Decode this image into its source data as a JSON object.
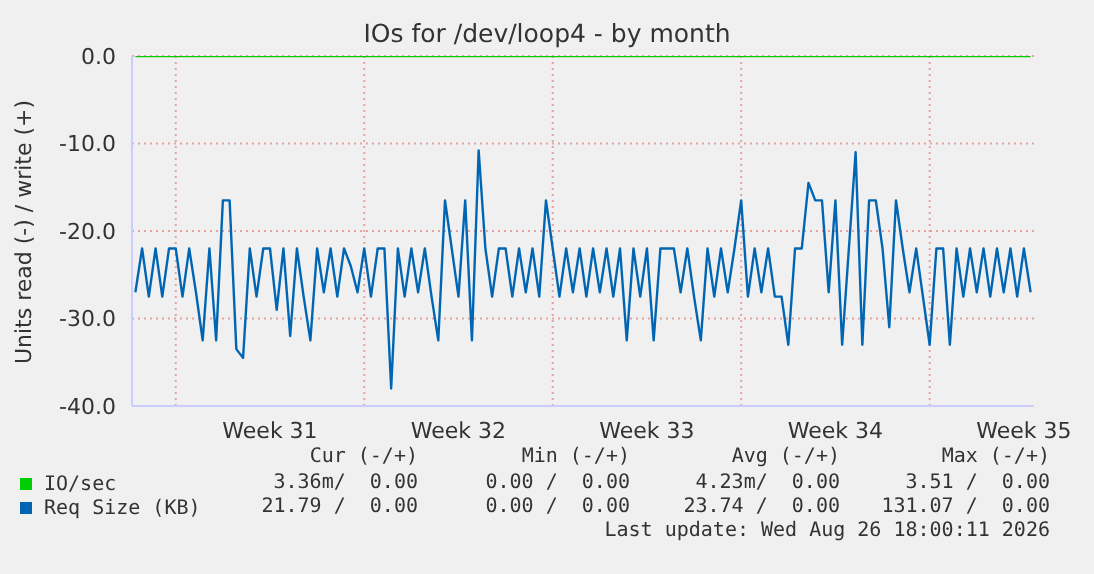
{
  "chart_data": {
    "type": "line",
    "title": "IOs for /dev/loop4 - by month",
    "ylabel": "Units read (-) / write (+)",
    "categories": [
      null,
      null,
      null,
      null,
      null,
      null,
      null,
      null,
      null,
      null,
      null,
      null,
      null,
      null,
      null,
      null,
      null,
      null,
      null,
      null,
      "Week 31",
      null,
      null,
      null,
      null,
      null,
      null,
      null,
      null,
      null,
      null,
      null,
      null,
      null,
      null,
      null,
      null,
      null,
      null,
      null,
      null,
      null,
      null,
      null,
      null,
      null,
      null,
      null,
      "Week 32",
      null,
      null,
      null,
      null,
      null,
      null,
      null,
      null,
      null,
      null,
      null,
      null,
      null,
      null,
      null,
      null,
      null,
      null,
      null,
      null,
      null,
      null,
      null,
      null,
      null,
      null,
      null,
      "Week 33",
      null,
      null,
      null,
      null,
      null,
      null,
      null,
      null,
      null,
      null,
      null,
      null,
      null,
      null,
      null,
      null,
      null,
      null,
      null,
      null,
      null,
      null,
      null,
      null,
      null,
      null,
      null,
      "Week 34",
      null,
      null,
      null,
      null,
      null,
      null,
      null,
      null,
      null,
      null,
      null,
      null,
      null,
      null,
      null,
      null,
      null,
      null,
      null,
      null,
      null,
      null,
      null,
      null,
      null,
      null,
      null,
      "Week 35",
      null
    ],
    "ylim": [
      -40,
      0
    ],
    "yticks": [
      {
        "value": 0,
        "label": "0.0"
      },
      {
        "value": -10,
        "label": "-10.0"
      },
      {
        "value": -20,
        "label": "-20.0"
      },
      {
        "value": -30,
        "label": "-30.0"
      },
      {
        "value": -40,
        "label": "-40.0"
      }
    ],
    "grid": true,
    "legend": "bottom",
    "marker": "none",
    "line_style": "solid",
    "series": [
      {
        "name": "IO/sec",
        "color": "#00cc00",
        "values": [
          0,
          0,
          0,
          0,
          0,
          0,
          0,
          0,
          0,
          0,
          0,
          0,
          0,
          0,
          0,
          0,
          0,
          0,
          0,
          0,
          0,
          0,
          0,
          0,
          0,
          0,
          0,
          0,
          0,
          0,
          0,
          0,
          0,
          0,
          0,
          0,
          0,
          0,
          0,
          0,
          0,
          0,
          0,
          0,
          0,
          0,
          0,
          0,
          0,
          0,
          0,
          0,
          0,
          0,
          0,
          0,
          0,
          0,
          0,
          0,
          0,
          0,
          0,
          0,
          0,
          0,
          0,
          0,
          0,
          0,
          0,
          0,
          0,
          0,
          0,
          0,
          0,
          0,
          0,
          0,
          0,
          0,
          0,
          0,
          0,
          0,
          0,
          0,
          0,
          0,
          0,
          0,
          0,
          0,
          0,
          0,
          0,
          0,
          0,
          0,
          0,
          0,
          0,
          0,
          0,
          0,
          0,
          0,
          0,
          0,
          0,
          0,
          0,
          0,
          0,
          0,
          0,
          0,
          0,
          0,
          0,
          0,
          0,
          0,
          0,
          0,
          0,
          0,
          0,
          0,
          0,
          0,
          0,
          0
        ]
      },
      {
        "name": "Req Size (KB)",
        "color": "#0066b3",
        "values": [
          -27,
          -22,
          -27.5,
          -22,
          -27.5,
          -22,
          -22,
          -27.5,
          -22,
          -27,
          -32.5,
          -22,
          -32.5,
          -16.5,
          -16.5,
          -33.5,
          -34.5,
          -22,
          -27.5,
          -22,
          -22,
          -29,
          -22,
          -32,
          -22,
          -27.5,
          -32.5,
          -22,
          -27,
          -22,
          -27.5,
          -22,
          -24,
          -27,
          -22,
          -27.5,
          -22,
          -22,
          -38,
          -22,
          -27.5,
          -22,
          -27,
          -22,
          -27.5,
          -32.5,
          -16.5,
          -22,
          -27.5,
          -16.5,
          -32.5,
          -10.8,
          -22,
          -27.5,
          -22,
          -22,
          -27.5,
          -22,
          -27,
          -22,
          -27.5,
          -16.5,
          -22,
          -27.5,
          -22,
          -27,
          -22,
          -27.5,
          -22,
          -27,
          -22,
          -27.5,
          -22,
          -32.5,
          -22,
          -27.5,
          -22,
          -32.5,
          -22,
          -22,
          -22,
          -27,
          -22,
          -27.5,
          -32.5,
          -22,
          -27.5,
          -22,
          -27,
          -22,
          -16.5,
          -27.5,
          -22,
          -27,
          -22,
          -27.5,
          -27.5,
          -33,
          -22,
          -22,
          -14.5,
          -16.5,
          -16.5,
          -27,
          -16.5,
          -33,
          -22,
          -11,
          -33,
          -16.5,
          -16.5,
          -22,
          -31,
          -16.5,
          -22,
          -27,
          -22,
          -27.5,
          -33,
          -22,
          -22,
          -33,
          -22,
          -27.5,
          -22,
          -27,
          -22,
          -27.5,
          -22,
          -27,
          -22,
          -27.5,
          -22,
          -27
        ]
      }
    ],
    "annotations": [
      "Cur (-/+)",
      "Min (-/+)",
      "Avg (-/+)",
      "Max (-/+)",
      "3.36m/  0.00",
      "0.00 /  0.00",
      "4.23m/  0.00",
      "3.51 /  0.00",
      "21.79 /  0.00",
      "0.00 /  0.00",
      "23.74 /  0.00",
      "131.07 /  0.00",
      "Last update: Wed Aug 26 18:00:11 2026"
    ]
  }
}
